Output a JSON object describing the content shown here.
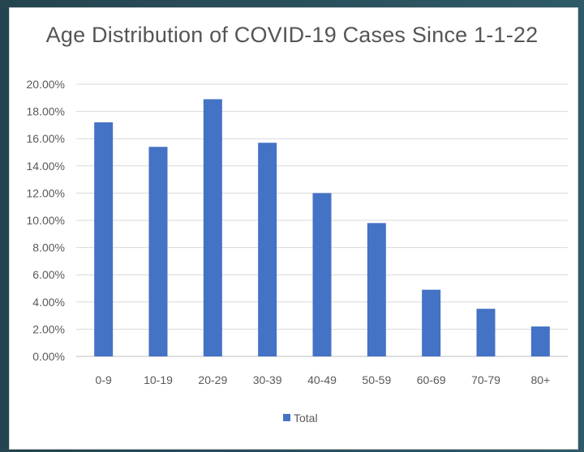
{
  "chart_data": {
    "type": "bar",
    "title": "Age Distribution of COVID-19 Cases Since 1-1-22",
    "categories": [
      "0-9",
      "10-19",
      "20-29",
      "30-39",
      "40-49",
      "50-59",
      "60-69",
      "70-79",
      "80+"
    ],
    "series": [
      {
        "name": "Total",
        "values": [
          17.2,
          15.4,
          18.9,
          15.7,
          12.0,
          9.8,
          4.9,
          3.5,
          2.2
        ]
      }
    ],
    "yticks": [
      "0.00%",
      "2.00%",
      "4.00%",
      "6.00%",
      "8.00%",
      "10.00%",
      "12.00%",
      "14.00%",
      "16.00%",
      "18.00%",
      "20.00%"
    ],
    "ylim": [
      0,
      20
    ],
    "grid": true,
    "legend_position": "bottom",
    "bar_color": "#4472c4"
  }
}
